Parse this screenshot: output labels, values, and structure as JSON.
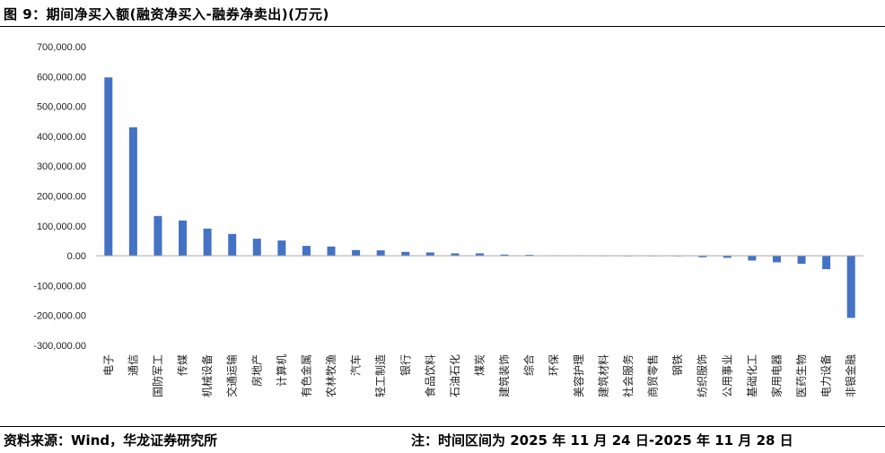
{
  "header": {
    "title": "图 9：期间净买入额(融资净买入-融券净卖出)(万元)"
  },
  "footer": {
    "source": "资料来源：Wind，华龙证券研究所",
    "note": "注：时间区间为 2025 年 11 月 24 日-2025 年 11 月 28 日"
  },
  "colors": {
    "bar": "#4472C4",
    "axis": "#A6A6A6",
    "tick_text": "#222222"
  },
  "chart_data": {
    "type": "bar",
    "title": "期间净买入额(融资净买入-融券净卖出)(万元)",
    "xlabel": "",
    "ylabel": "",
    "ylim": [
      -300000,
      700000
    ],
    "yticks": [
      "700,000.00",
      "600,000.00",
      "500,000.00",
      "400,000.00",
      "300,000.00",
      "200,000.00",
      "100,000.00",
      "0.00",
      "-100,000.00",
      "-200,000.00",
      "-300,000.00"
    ],
    "ytick_values": [
      700000,
      600000,
      500000,
      400000,
      300000,
      200000,
      100000,
      0,
      -100000,
      -200000,
      -300000
    ],
    "grid": false,
    "legend": "none",
    "categories": [
      "电子",
      "通信",
      "国防军工",
      "传媒",
      "机械设备",
      "交通运输",
      "房地产",
      "计算机",
      "有色金属",
      "农林牧渔",
      "汽车",
      "轻工制造",
      "银行",
      "食品饮料",
      "石油石化",
      "煤炭",
      "建筑装饰",
      "综合",
      "环保",
      "美容护理",
      "建筑材料",
      "社会服务",
      "商贸零售",
      "钢铁",
      "纺织服饰",
      "公用事业",
      "基础化工",
      "家用电器",
      "医药生物",
      "电力设备",
      "非银金融"
    ],
    "values": [
      597000,
      430000,
      133000,
      118000,
      91000,
      73000,
      57000,
      51000,
      33000,
      31000,
      19000,
      18000,
      13000,
      11000,
      8000,
      8000,
      4000,
      3000,
      1000,
      1000,
      500,
      -500,
      -1000,
      -2000,
      -5000,
      -7000,
      -16000,
      -22000,
      -27000,
      -45000,
      -208000
    ]
  }
}
